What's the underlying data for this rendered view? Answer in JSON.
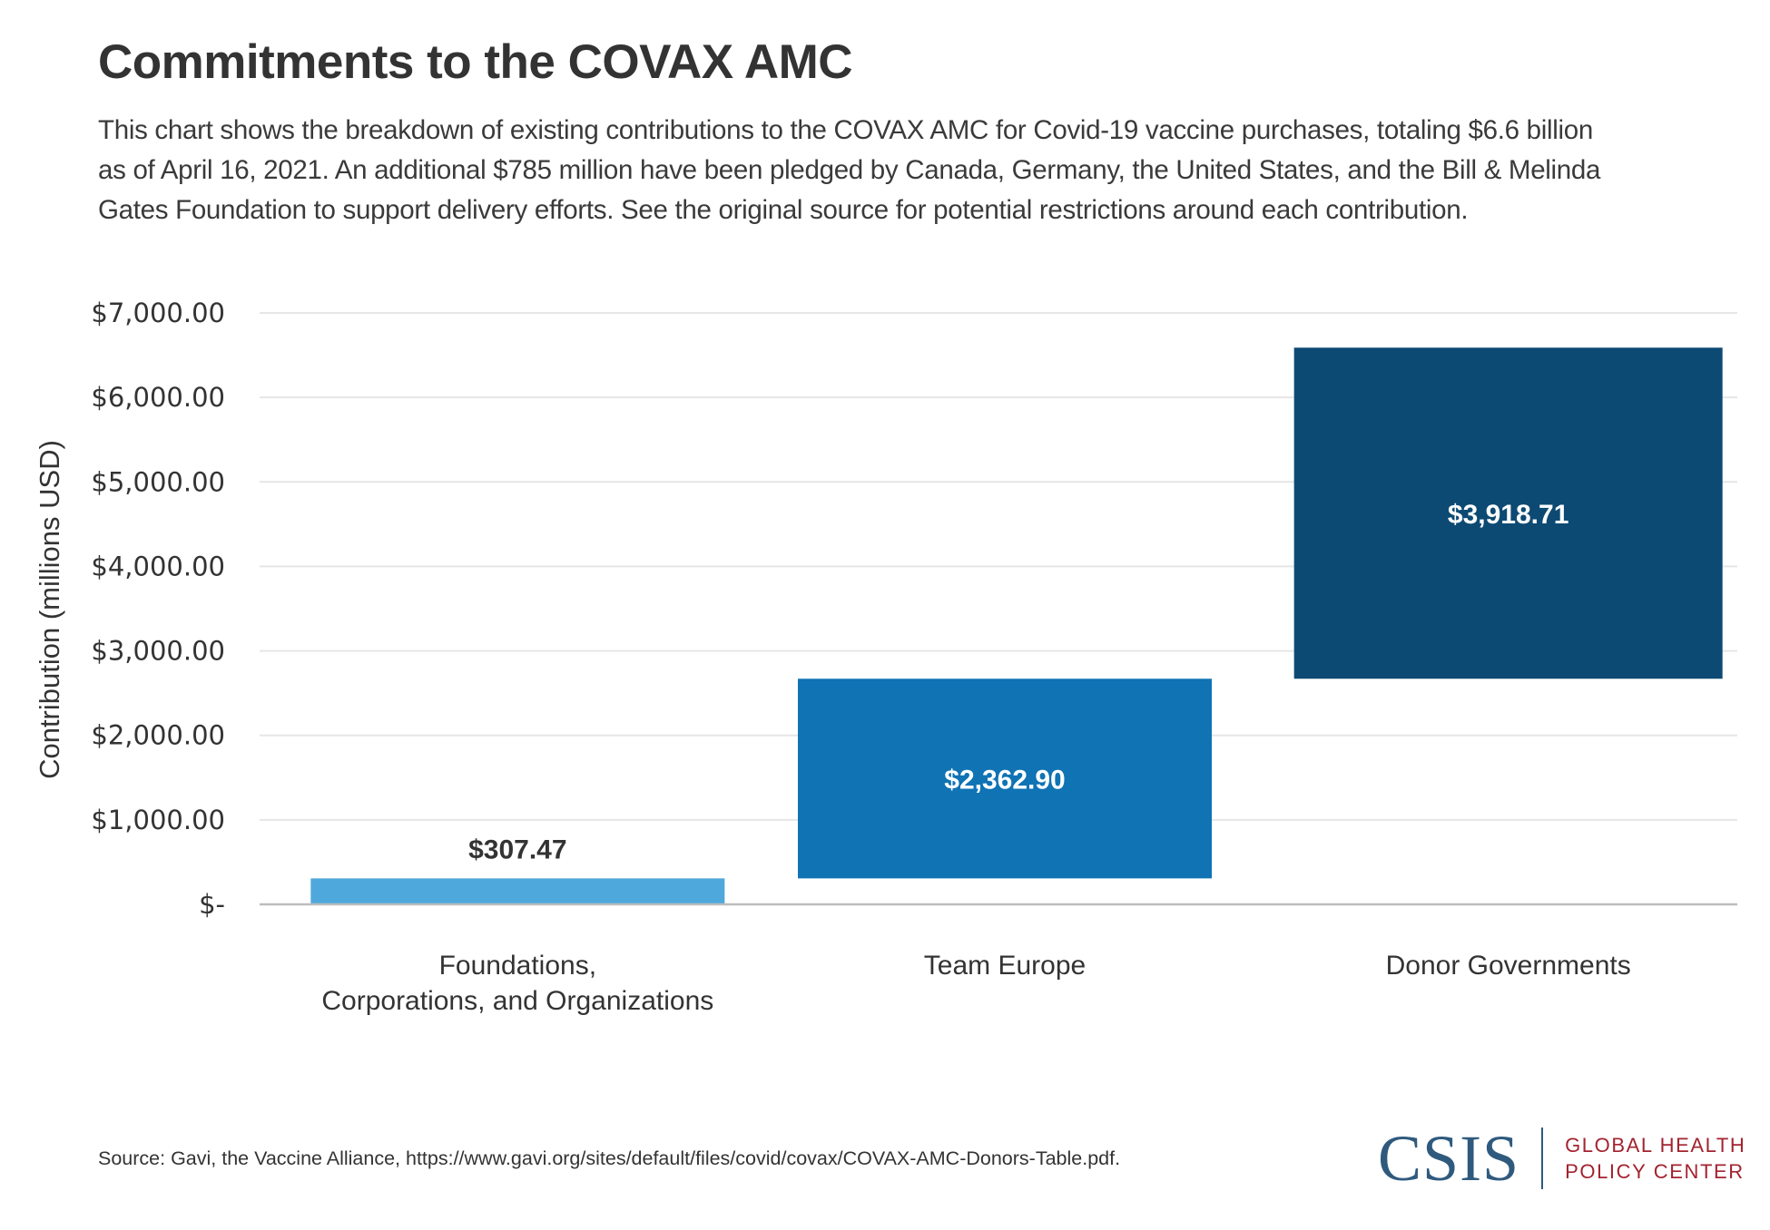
{
  "header": {
    "title": "Commitments to the COVAX AMC",
    "subtitle_lines": [
      "This chart shows the breakdown of existing contributions to the COVAX AMC for Covid-19 vaccine purchases, totaling $6.6 billion",
      "as of April 16, 2021. An additional $785 million have been pledged by Canada, Germany, the United States, and the Bill & Melinda",
      "Gates Foundation to support delivery efforts. See the original source for potential restrictions around each contribution."
    ]
  },
  "chart_data": {
    "type": "bar",
    "subtype": "waterfall",
    "title": "Commitments to the COVAX AMC",
    "xlabel": "",
    "ylabel": "Contribution (millions USD)",
    "ylim": [
      0,
      7000
    ],
    "yticks": [
      0,
      1000,
      2000,
      3000,
      4000,
      5000,
      6000,
      7000
    ],
    "ytick_labels": [
      "$-",
      "$1,000.00",
      "$2,000.00",
      "$3,000.00",
      "$4,000.00",
      "$5,000.00",
      "$6,000.00",
      "$7,000.00"
    ],
    "grid": true,
    "categories": [
      [
        "Foundations,",
        "Corporations, and Organizations"
      ],
      [
        "Team Europe"
      ],
      [
        "Donor Governments"
      ]
    ],
    "values": [
      307.47,
      2362.9,
      3918.71
    ],
    "bases": [
      0,
      307.47,
      2670.37
    ],
    "data_labels": [
      "$307.47",
      "$2,362.90",
      "$3,918.71"
    ],
    "label_positions": [
      "above",
      "inside",
      "inside"
    ],
    "colors": [
      "#4fa8dc",
      "#0f73b4",
      "#0d4a73"
    ],
    "label_colors": [
      "#333333",
      "#ffffff",
      "#ffffff"
    ]
  },
  "footer": {
    "source": "Source: Gavi, the Vaccine Alliance, https://www.gavi.org/sites/default/files/covid/covax/COVAX-AMC-Donors-Table.pdf.",
    "logo": {
      "org": "CSIS",
      "center_line1": "GLOBAL HEALTH",
      "center_line2": "POLICY CENTER"
    }
  }
}
